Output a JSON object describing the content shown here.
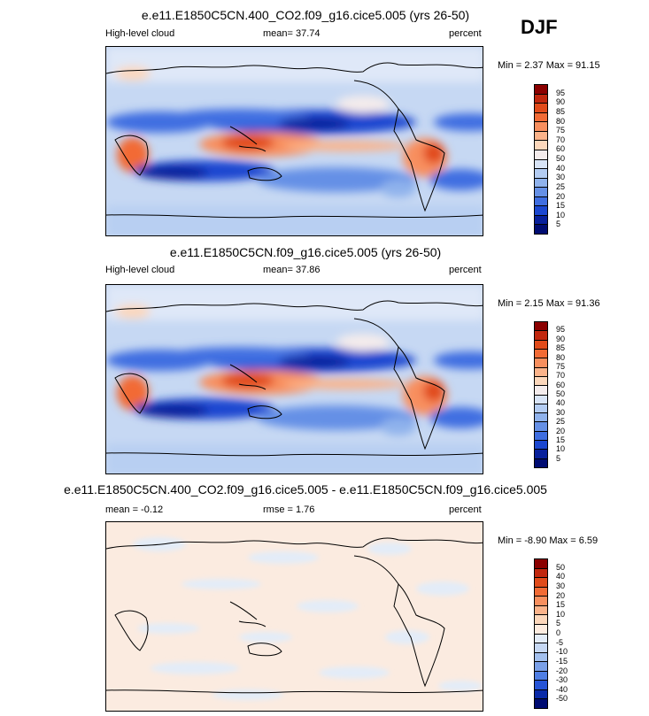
{
  "season_label": "DJF",
  "panels": [
    {
      "title": "e.e11.E1850C5CN.400_CO2.f09_g16.cice5.005 (yrs 26-50)",
      "left_label": "High-level cloud",
      "center_label": "mean=  37.74",
      "right_label": "percent",
      "minmax": "Min =   2.37 Max =  91.15",
      "colorbar_levels": [
        "95",
        "90",
        "85",
        "80",
        "75",
        "70",
        "60",
        "50",
        "40",
        "30",
        "25",
        "20",
        "15",
        "10",
        "5"
      ],
      "colorbar_colors": [
        "#8b0000",
        "#c1270e",
        "#e14b1a",
        "#f26b35",
        "#f88f5e",
        "#fbb38a",
        "#fcd7bb",
        "#f4ecec",
        "#d8e4f6",
        "#b3ccf2",
        "#8fb2ec",
        "#6590e6",
        "#3f6ee1",
        "#1b47d0",
        "#08209b",
        "#000c72"
      ]
    },
    {
      "title": "e.e11.E1850C5CN.f09_g16.cice5.005 (yrs 26-50)",
      "left_label": "High-level cloud",
      "center_label": "mean=  37.86",
      "right_label": "percent",
      "minmax": "Min =   2.15 Max =  91.36",
      "colorbar_levels": [
        "95",
        "90",
        "85",
        "80",
        "75",
        "70",
        "60",
        "50",
        "40",
        "30",
        "25",
        "20",
        "15",
        "10",
        "5"
      ],
      "colorbar_colors": [
        "#8b0000",
        "#c1270e",
        "#e14b1a",
        "#f26b35",
        "#f88f5e",
        "#fbb38a",
        "#fcd7bb",
        "#f4ecec",
        "#d8e4f6",
        "#b3ccf2",
        "#8fb2ec",
        "#6590e6",
        "#3f6ee1",
        "#1b47d0",
        "#08209b",
        "#000c72"
      ]
    },
    {
      "title": "e.e11.E1850C5CN.400_CO2.f09_g16.cice5.005 - e.e11.E1850C5CN.f09_g16.cice5.005",
      "left_label": "mean =  -0.12",
      "center_label": "rmse =   1.76",
      "right_label": "percent",
      "minmax": "Min =  -8.90 Max =   6.59",
      "colorbar_levels": [
        "50",
        "40",
        "30",
        "20",
        "15",
        "10",
        "5",
        "0",
        "-5",
        "-10",
        "-15",
        "-20",
        "-30",
        "-40",
        "-50"
      ],
      "colorbar_colors": [
        "#8b0000",
        "#c1270e",
        "#e14b1a",
        "#f26b35",
        "#f88f5e",
        "#fbb38a",
        "#fcd7bb",
        "#fdece0",
        "#e3ecf8",
        "#c6d8f3",
        "#a3c0ee",
        "#7aa0e8",
        "#4f7ee3",
        "#2654d6",
        "#0a2aa8",
        "#000c72"
      ]
    }
  ]
}
